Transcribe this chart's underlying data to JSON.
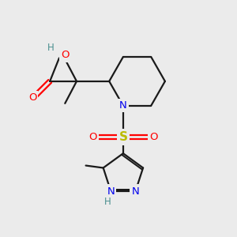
{
  "bg_color": "#ebebeb",
  "bond_color": "#1a1a1a",
  "O_color": "#ff0000",
  "N_color": "#0000ee",
  "S_color": "#bbbb00",
  "H_color": "#4a8f8f",
  "figsize": [
    3.0,
    3.0
  ],
  "dpi": 100,
  "xlim": [
    0,
    10
  ],
  "ylim": [
    0,
    10
  ]
}
